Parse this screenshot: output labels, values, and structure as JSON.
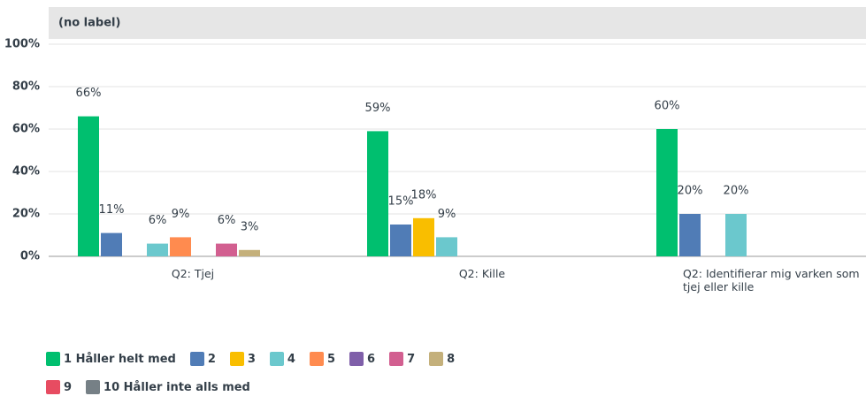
{
  "chart_data": {
    "type": "bar",
    "header": "(no label)",
    "categories": [
      "Q2: Tjej",
      "Q2: Kille",
      "Q2: Identifierar mig varken som tjej eller kille"
    ],
    "series": [
      {
        "name": "1 Håller helt med",
        "color": "#00bf6f",
        "values": [
          66,
          59,
          60
        ],
        "value_labels": [
          "66%",
          "59%",
          "60%"
        ]
      },
      {
        "name": "2",
        "color": "#507cb6",
        "values": [
          11,
          15,
          20
        ],
        "value_labels": [
          "11%",
          "15%",
          "20%"
        ]
      },
      {
        "name": "3",
        "color": "#f9be00",
        "values": [
          null,
          18,
          null
        ],
        "value_labels": [
          null,
          "18%",
          null
        ]
      },
      {
        "name": "4",
        "color": "#6bc8cd",
        "values": [
          6,
          9,
          20
        ],
        "value_labels": [
          "6%",
          "9%",
          "20%"
        ]
      },
      {
        "name": "5",
        "color": "#ff8b4f",
        "values": [
          9,
          null,
          null
        ],
        "value_labels": [
          "9%",
          null,
          null
        ]
      },
      {
        "name": "6",
        "color": "#7f5fa9",
        "values": [
          null,
          null,
          null
        ]
      },
      {
        "name": "7",
        "color": "#d25f90",
        "values": [
          6,
          null,
          null
        ],
        "value_labels": [
          "6%",
          null,
          null
        ]
      },
      {
        "name": "8",
        "color": "#c4b07b",
        "values": [
          3,
          null,
          null
        ],
        "value_labels": [
          "3%",
          null,
          null
        ]
      },
      {
        "name": "9",
        "color": "#e74c61",
        "values": [
          null,
          null,
          null
        ]
      },
      {
        "name": "10 Håller inte alls med",
        "color": "#768086",
        "values": [
          null,
          null,
          null
        ]
      }
    ],
    "ylim": [
      0,
      100
    ],
    "yticks": [
      {
        "value": 0,
        "label": "0%"
      },
      {
        "value": 20,
        "label": "20%"
      },
      {
        "value": 40,
        "label": "40%"
      },
      {
        "value": 60,
        "label": "60%"
      },
      {
        "value": 80,
        "label": "80%"
      },
      {
        "value": 100,
        "label": "100%"
      }
    ],
    "grid": true
  }
}
